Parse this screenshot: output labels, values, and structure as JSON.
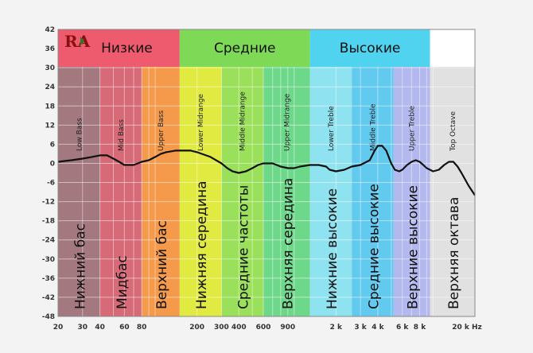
{
  "chart_data": {
    "type": "line",
    "title": "",
    "xlabel": "",
    "ylabel": "",
    "x_scale": "log",
    "xlim": [
      20,
      20000
    ],
    "ylim": [
      -48,
      42
    ],
    "grid": true,
    "y_ticks": [
      42,
      36,
      30,
      24,
      18,
      12,
      6,
      0,
      -6,
      -12,
      -18,
      -24,
      -30,
      -36,
      -42,
      -48
    ],
    "x_ticks": [
      {
        "value": 20,
        "label": "20"
      },
      {
        "value": 30,
        "label": "30"
      },
      {
        "value": 40,
        "label": "40"
      },
      {
        "value": 60,
        "label": "60"
      },
      {
        "value": 80,
        "label": "80"
      },
      {
        "value": 200,
        "label": "200"
      },
      {
        "value": 300,
        "label": "300"
      },
      {
        "value": 400,
        "label": "400"
      },
      {
        "value": 600,
        "label": "600"
      },
      {
        "value": 900,
        "label": "900"
      },
      {
        "value": 2000,
        "label": "2 k"
      },
      {
        "value": 3000,
        "label": "3 k"
      },
      {
        "value": 4000,
        "label": "4 k"
      },
      {
        "value": 6000,
        "label": "6 k"
      },
      {
        "value": 8000,
        "label": "8 k"
      },
      {
        "value": 20000,
        "label": "20 k Hz"
      }
    ],
    "groups": [
      {
        "label": "Низкие",
        "from": 20,
        "to": 150,
        "color": "#ef5b6e"
      },
      {
        "label": "Средние",
        "from": 150,
        "to": 1300,
        "color": "#7ed957"
      },
      {
        "label": "Высокие",
        "from": 1300,
        "to": 9500,
        "color": "#4fd3ef"
      }
    ],
    "bands": [
      {
        "en": "Low Bass",
        "ru": "Нижний бас",
        "from": 20,
        "to": 40,
        "color": "#a3787f"
      },
      {
        "en": "Mid Bass",
        "ru": "Мидбас",
        "from": 40,
        "to": 80,
        "color": "#d76a77"
      },
      {
        "en": "Upper Bass",
        "ru": "Верхний бас",
        "from": 80,
        "to": 150,
        "color": "#f59a4b"
      },
      {
        "en": "Lower Midrange",
        "ru": "Нижняя середина",
        "from": 150,
        "to": 300,
        "color": "#e0ea40"
      },
      {
        "en": "Middle Midrange",
        "ru": "Средние частоты",
        "from": 300,
        "to": 600,
        "color": "#9be05a"
      },
      {
        "en": "Upper Midrange",
        "ru": "Верхняя середина",
        "from": 600,
        "to": 1300,
        "color": "#6ed88a"
      },
      {
        "en": "Lower Treble",
        "ru": "Нижние высокие",
        "from": 1300,
        "to": 2600,
        "color": "#8fe3f0"
      },
      {
        "en": "Middle Treble",
        "ru": "Средние высокие",
        "from": 2600,
        "to": 5200,
        "color": "#62c9ef"
      },
      {
        "en": "Upper Treble",
        "ru": "Верхние высокие",
        "from": 5200,
        "to": 9500,
        "color": "#b3b8ee"
      },
      {
        "en": "Top Octave",
        "ru": "Верхняя октава",
        "from": 9500,
        "to": 20000,
        "color": "#e1e1e1"
      }
    ],
    "top_octave_header_color": "#ffffff",
    "logo": "RA",
    "series": [
      {
        "points": [
          [
            20,
            0.5
          ],
          [
            25,
            1
          ],
          [
            30,
            1.5
          ],
          [
            35,
            2
          ],
          [
            40,
            2.5
          ],
          [
            45,
            2.5
          ],
          [
            50,
            1.5
          ],
          [
            55,
            0.5
          ],
          [
            60,
            -0.5
          ],
          [
            65,
            -0.5
          ],
          [
            70,
            -0.5
          ],
          [
            75,
            0
          ],
          [
            80,
            0.5
          ],
          [
            90,
            1
          ],
          [
            100,
            2
          ],
          [
            110,
            3
          ],
          [
            120,
            3.5
          ],
          [
            140,
            4
          ],
          [
            160,
            4
          ],
          [
            180,
            4
          ],
          [
            200,
            3.5
          ],
          [
            250,
            2
          ],
          [
            300,
            0
          ],
          [
            330,
            -1.5
          ],
          [
            360,
            -2.5
          ],
          [
            400,
            -3
          ],
          [
            450,
            -2.5
          ],
          [
            500,
            -1.5
          ],
          [
            550,
            -0.5
          ],
          [
            600,
            0
          ],
          [
            650,
            0
          ],
          [
            700,
            0
          ],
          [
            800,
            -1
          ],
          [
            900,
            -1.5
          ],
          [
            1000,
            -1.5
          ],
          [
            1100,
            -1
          ],
          [
            1300,
            -0.5
          ],
          [
            1500,
            -0.5
          ],
          [
            1700,
            -1
          ],
          [
            1800,
            -2
          ],
          [
            2000,
            -2.5
          ],
          [
            2300,
            -2
          ],
          [
            2600,
            -1
          ],
          [
            3000,
            -0.5
          ],
          [
            3500,
            1
          ],
          [
            3800,
            4
          ],
          [
            4000,
            5.5
          ],
          [
            4300,
            5.5
          ],
          [
            4600,
            4
          ],
          [
            5000,
            0
          ],
          [
            5300,
            -2
          ],
          [
            5700,
            -2.5
          ],
          [
            6000,
            -2
          ],
          [
            6500,
            -0.5
          ],
          [
            7000,
            0.5
          ],
          [
            7500,
            1
          ],
          [
            8000,
            0.5
          ],
          [
            8500,
            -0.5
          ],
          [
            9000,
            -1.5
          ],
          [
            9500,
            -2
          ],
          [
            10000,
            -2.5
          ],
          [
            11000,
            -2
          ],
          [
            12000,
            -0.5
          ],
          [
            13000,
            0.5
          ],
          [
            14000,
            0.5
          ],
          [
            15000,
            -1
          ],
          [
            16000,
            -3
          ],
          [
            18000,
            -7
          ],
          [
            20000,
            -10
          ]
        ]
      }
    ]
  }
}
